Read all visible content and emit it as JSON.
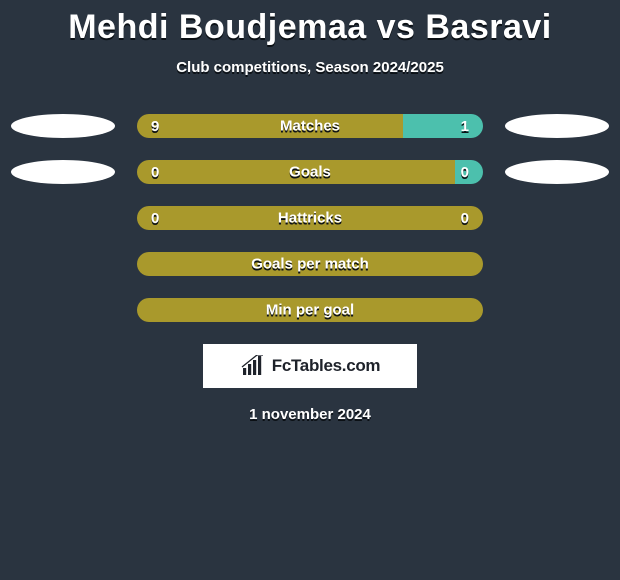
{
  "title": "Mehdi Boudjemaa vs Basravi",
  "subtitle": "Club competitions, Season 2024/2025",
  "date": "1 november 2024",
  "logo_text": "FcTables.com",
  "colors": {
    "background": "#2a3440",
    "bar_left": "#a9992c",
    "bar_right": "#4cc0ad",
    "bar_single": "#a9992c",
    "text": "#ffffff",
    "shadow": "#0b1015",
    "badge": "#ffffff",
    "logo_bg": "#ffffff",
    "logo_text": "#1e222a"
  },
  "rows": [
    {
      "label": "Matches",
      "left_val": "9",
      "right_val": "1",
      "left_pct": 77,
      "right_pct": 23,
      "badges": true
    },
    {
      "label": "Goals",
      "left_val": "0",
      "right_val": "0",
      "left_pct": 92,
      "right_pct": 8,
      "badges": true
    },
    {
      "label": "Hattricks",
      "left_val": "0",
      "right_val": "0",
      "left_pct": 100,
      "right_pct": 0,
      "badges": false
    },
    {
      "label": "Goals per match",
      "single": true,
      "badges": false
    },
    {
      "label": "Min per goal",
      "single": true,
      "badges": false
    }
  ]
}
